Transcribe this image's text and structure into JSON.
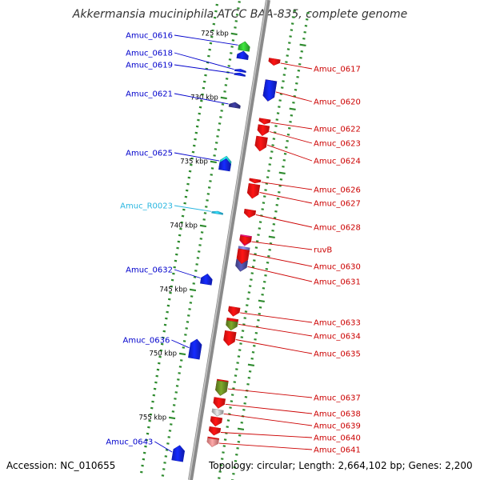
{
  "title": "Akkermansia muciniphila ATCC BAA-835, complete genome",
  "footer": {
    "accession": "Accession: NC_010655",
    "summary": "Topology: circular; Length: 2,664,102 bp; Genes: 2,200"
  },
  "colors": {
    "backbone": "#8a8a8a",
    "forward_label": "#0000cc",
    "reverse_label": "#cc0000",
    "rna_label": "#29b6e0",
    "tick": "#2e8b2e"
  },
  "scale_labels": [
    {
      "text": "725 kbp",
      "pos": 725
    },
    {
      "text": "730 kbp",
      "pos": 730
    },
    {
      "text": "735 kbp",
      "pos": 735
    },
    {
      "text": "740 kbp",
      "pos": 740
    },
    {
      "text": "745 kbp",
      "pos": 745
    },
    {
      "text": "750 kbp",
      "pos": 750
    },
    {
      "text": "755 kbp",
      "pos": 755
    }
  ],
  "genes": [
    {
      "name": "Amuc_0616",
      "strand": "+",
      "color": "#33bb33",
      "start": 725.45,
      "end": 726.15,
      "labeled": true
    },
    {
      "name": "",
      "strand": "+",
      "color": "#1122dd",
      "start": 726.2,
      "end": 726.8,
      "labeled": false
    },
    {
      "name": "Amuc_0617",
      "strand": "-",
      "color": "#ee1111",
      "start": 726.4,
      "end": 726.9,
      "labeled": true
    },
    {
      "name": "Amuc_0618",
      "strand": "+",
      "color": "#1122dd",
      "start": 727.6,
      "end": 727.8,
      "labeled": true
    },
    {
      "name": "Amuc_0619",
      "strand": "+",
      "color": "#1122dd",
      "start": 727.9,
      "end": 728.1,
      "labeled": true
    },
    {
      "name": "Amuc_0620",
      "strand": "-",
      "color": "#ee1111",
      "start": 728.1,
      "end": 729.7,
      "labeled": true
    },
    {
      "name": "",
      "strand": "-",
      "color": "#1122dd",
      "start": 728.1,
      "end": 729.7,
      "labeled": false
    },
    {
      "name": "Amuc_0621",
      "strand": "+",
      "color": "#333388",
      "start": 730.2,
      "end": 730.6,
      "labeled": true
    },
    {
      "name": "Amuc_0622",
      "strand": "-",
      "color": "#ee1111",
      "start": 731.1,
      "end": 731.5,
      "labeled": true
    },
    {
      "name": "Amuc_0623",
      "strand": "-",
      "color": "#ee1111",
      "start": 731.6,
      "end": 732.4,
      "labeled": true
    },
    {
      "name": "Amuc_0624",
      "strand": "-",
      "color": "#ee1111",
      "start": 732.5,
      "end": 733.6,
      "labeled": true
    },
    {
      "name": "Amuc_0625",
      "strand": "+",
      "color": "#22c8c8",
      "start": 734.4,
      "end": 735.3,
      "labeled": true
    },
    {
      "name": "",
      "strand": "+",
      "color": "#1122dd",
      "start": 734.6,
      "end": 735.5,
      "labeled": false
    },
    {
      "name": "Amuc_0626",
      "strand": "-",
      "color": "#ee1111",
      "start": 735.8,
      "end": 736.1,
      "labeled": true
    },
    {
      "name": "Amuc_0627",
      "strand": "-",
      "color": "#ee1111",
      "start": 736.2,
      "end": 737.3,
      "labeled": true
    },
    {
      "name": "Amuc_R0023",
      "strand": "+",
      "color": "#29b6e0",
      "start": 738.7,
      "end": 738.9,
      "labeled": true
    },
    {
      "name": "Amuc_0628",
      "strand": "-",
      "color": "#ee1111",
      "start": 738.2,
      "end": 738.8,
      "labeled": true
    },
    {
      "name": "ruvB",
      "strand": "-",
      "color": "#ee1177",
      "start": 740.2,
      "end": 741.0,
      "labeled": true
    },
    {
      "name": "",
      "strand": "-",
      "color": "#ee1111",
      "start": 740.3,
      "end": 740.9,
      "labeled": false
    },
    {
      "name": "Amuc_0630",
      "strand": "-",
      "color": "#7777cc",
      "start": 741.1,
      "end": 742.0,
      "labeled": true
    },
    {
      "name": "Amuc_0631",
      "strand": "-",
      "color": "#4a4a99",
      "start": 742.1,
      "end": 743.0,
      "labeled": true
    },
    {
      "name": "",
      "strand": "-",
      "color": "#ee1111",
      "start": 741.3,
      "end": 742.4,
      "labeled": false
    },
    {
      "name": "Amuc_0632",
      "strand": "+",
      "color": "#1122dd",
      "start": 743.6,
      "end": 744.4,
      "labeled": true
    },
    {
      "name": "Amuc_0633",
      "strand": "-",
      "color": "#ee1111",
      "start": 745.8,
      "end": 746.5,
      "labeled": true
    },
    {
      "name": "Amuc_0634",
      "strand": "-",
      "color": "#ee1111",
      "start": 746.7,
      "end": 747.4,
      "labeled": true
    },
    {
      "name": "",
      "strand": "-",
      "color": "#668822",
      "start": 746.9,
      "end": 747.6,
      "labeled": false
    },
    {
      "name": "Amuc_0635",
      "strand": "-",
      "color": "#ee1111",
      "start": 747.7,
      "end": 748.8,
      "labeled": true
    },
    {
      "name": "Amuc_0636",
      "strand": "+",
      "color": "#1122dd",
      "start": 748.7,
      "end": 750.2,
      "labeled": true
    },
    {
      "name": "Amuc_0637",
      "strand": "-",
      "color": "#ee1111",
      "start": 751.5,
      "end": 752.7,
      "labeled": true
    },
    {
      "name": "",
      "strand": "-",
      "color": "#668822",
      "start": 751.6,
      "end": 752.7,
      "labeled": false
    },
    {
      "name": "Amuc_0638",
      "strand": "-",
      "color": "#ee1111",
      "start": 752.9,
      "end": 753.7,
      "labeled": true
    },
    {
      "name": "Amuc_0639",
      "strand": "-",
      "color": "#bbbbbb",
      "start": 753.8,
      "end": 754.3,
      "labeled": true
    },
    {
      "name": "",
      "strand": "-",
      "color": "#ee1111",
      "start": 754.4,
      "end": 755.1,
      "labeled": false
    },
    {
      "name": "Amuc_0640",
      "strand": "-",
      "color": "#ee1111",
      "start": 755.2,
      "end": 755.8,
      "labeled": true
    },
    {
      "name": "Amuc_0641",
      "strand": "-",
      "color": "#ee1111",
      "start": 756.0,
      "end": 756.7,
      "labeled": true
    },
    {
      "name": "",
      "strand": "-",
      "color": "#ee8888",
      "start": 756.1,
      "end": 756.7,
      "labeled": false
    },
    {
      "name": "Amuc_0643",
      "strand": "+",
      "color": "#1122dd",
      "start": 757.0,
      "end": 758.2,
      "labeled": true
    }
  ]
}
